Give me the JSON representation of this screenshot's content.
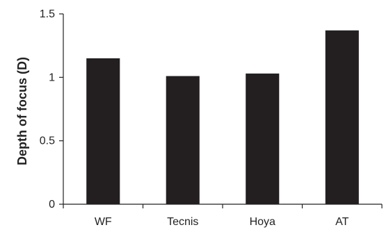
{
  "chart_data": {
    "type": "bar",
    "title": "",
    "xlabel": "",
    "ylabel": "Depth of focus (D)",
    "categories": [
      "WF",
      "Tecnis",
      "Hoya",
      "AT"
    ],
    "values": [
      1.15,
      1.01,
      1.03,
      1.37
    ],
    "ylim": [
      0,
      1.5
    ],
    "yticks": [
      0,
      0.5,
      1,
      1.5
    ],
    "ytick_labels": [
      "0",
      "0.5",
      "1",
      "1.5"
    ],
    "grid": false,
    "legend": "none",
    "bar_color": "#231f20"
  }
}
